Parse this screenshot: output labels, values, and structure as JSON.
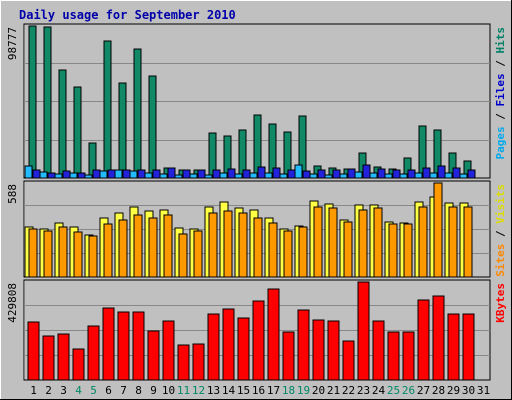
{
  "chart_data": {
    "type": "bar",
    "title": "Daily usage for September 2010",
    "categories": [
      "1",
      "2",
      "3",
      "4",
      "5",
      "6",
      "7",
      "8",
      "9",
      "10",
      "11",
      "12",
      "13",
      "14",
      "15",
      "16",
      "17",
      "18",
      "19",
      "20",
      "21",
      "22",
      "23",
      "24",
      "25",
      "26",
      "27",
      "28",
      "29",
      "30",
      "31"
    ],
    "weekend_days": [
      "4",
      "5",
      "11",
      "12",
      "18",
      "19",
      "25",
      "26"
    ],
    "panels": [
      {
        "id": "hits",
        "ymax_label": "98777",
        "ylim": [
          0,
          98777
        ],
        "ylabel_parts": [
          {
            "text": "Pages",
            "color": "#00aaee"
          },
          {
            "text": " / ",
            "color": "#000000"
          },
          {
            "text": "Files",
            "color": "#0000cc"
          },
          {
            "text": " / ",
            "color": "#000000"
          },
          {
            "text": "Hits",
            "color": "#008066"
          }
        ],
        "series": [
          {
            "name": "Hits",
            "color": "#118866",
            "values": [
              98600,
              98000,
              70000,
              59000,
              23000,
              89000,
              62000,
              84000,
              66000,
              6500,
              5000,
              5500,
              29000,
              27000,
              31000,
              41000,
              35000,
              30000,
              40000,
              8000,
              6500,
              6000,
              16000,
              7000,
              6000,
              13000,
              34000,
              31000,
              16000,
              11000,
              null
            ]
          },
          {
            "name": "Files",
            "color": "#2222dd",
            "values": [
              5000,
              3000,
              4500,
              3500,
              5000,
              5500,
              5500,
              5500,
              5000,
              6500,
              5000,
              5500,
              5000,
              6000,
              5500,
              7000,
              6500,
              5000,
              4500,
              5000,
              5000,
              6000,
              8500,
              6000,
              5500,
              5500,
              6500,
              7500,
              6500,
              5500,
              null
            ]
          },
          {
            "name": "Pages",
            "color": "#22bbff",
            "values": [
              8000,
              4000,
              2500,
              3000,
              2000,
              4500,
              5000,
              4500,
              3500,
              2500,
              2000,
              2500,
              2000,
              3000,
              2500,
              3000,
              3000,
              2500,
              8500,
              2500,
              2000,
              2500,
              4000,
              3000,
              2500,
              2500,
              3000,
              3500,
              3000,
              2500,
              null
            ]
          }
        ]
      },
      {
        "id": "visits",
        "ymax_label": "588",
        "ylim": [
          0,
          588
        ],
        "ylabel_parts": [
          {
            "text": "Sites",
            "color": "#ff8800"
          },
          {
            "text": " / ",
            "color": "#000000"
          },
          {
            "text": "Visits",
            "color": "#dddd00"
          }
        ],
        "series": [
          {
            "name": "Visits",
            "color": "#ffff44",
            "values": [
              310,
              300,
              340,
              310,
              265,
              370,
              400,
              440,
              410,
              420,
              305,
              300,
              440,
              470,
              430,
              420,
              370,
              300,
              320,
              475,
              455,
              355,
              450,
              450,
              345,
              340,
              470,
              500,
              460,
              460,
              null
            ]
          },
          {
            "name": "Sites",
            "color": "#ff9900",
            "values": [
              300,
              290,
              315,
              280,
              255,
              330,
              355,
              390,
              370,
              390,
              270,
              290,
              400,
              410,
              400,
              370,
              340,
              290,
              315,
              440,
              430,
              345,
              420,
              430,
              330,
              330,
              440,
              588,
              440,
              440,
              null
            ]
          }
        ]
      },
      {
        "id": "kbytes",
        "ymax_label": "429808",
        "ylim": [
          0,
          429808
        ],
        "ylabel_parts": [
          {
            "text": "KBytes",
            "color": "#ff0000"
          }
        ],
        "series": [
          {
            "name": "KBytes",
            "color": "#ff0000",
            "values": [
              255000,
              195000,
              200000,
              135000,
              235000,
              315000,
              300000,
              300000,
              215000,
              260000,
              155000,
              160000,
              290000,
              310000,
              270000,
              345000,
              400000,
              210000,
              305000,
              265000,
              260000,
              170000,
              429808,
              260000,
              210000,
              210000,
              350000,
              370000,
              290000,
              290000,
              null
            ]
          }
        ]
      }
    ]
  }
}
